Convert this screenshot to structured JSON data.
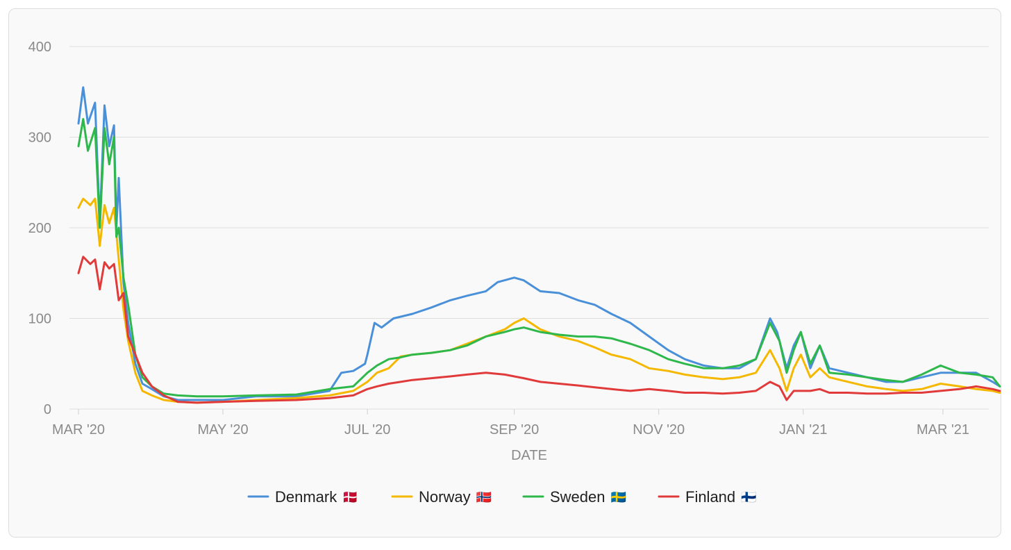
{
  "chart_data": {
    "type": "line",
    "title": "",
    "xlabel": "DATE",
    "ylabel": "",
    "ylim": [
      0,
      400
    ],
    "yticks": [
      0,
      100,
      200,
      300,
      400
    ],
    "grid": true,
    "legend_position": "bottom",
    "x_range": [
      "2020-03-01",
      "2021-03-25"
    ],
    "x_tick_labels": [
      {
        "date": "2020-03-01",
        "label": "MAR '20"
      },
      {
        "date": "2020-05-01",
        "label": "MAY '20"
      },
      {
        "date": "2020-07-01",
        "label": "JUL '20"
      },
      {
        "date": "2020-09-01",
        "label": "SEP '20"
      },
      {
        "date": "2020-11-01",
        "label": "NOV '20"
      },
      {
        "date": "2021-01-01",
        "label": "JAN '21"
      },
      {
        "date": "2021-03-01",
        "label": "MAR '21"
      }
    ],
    "series": [
      {
        "name": "Denmark",
        "flag": "🇩🇰",
        "color": "#4a90d9",
        "points": [
          [
            "2020-03-01",
            315
          ],
          [
            "2020-03-03",
            355
          ],
          [
            "2020-03-05",
            315
          ],
          [
            "2020-03-08",
            338
          ],
          [
            "2020-03-10",
            205
          ],
          [
            "2020-03-12",
            335
          ],
          [
            "2020-03-14",
            290
          ],
          [
            "2020-03-16",
            313
          ],
          [
            "2020-03-17",
            200
          ],
          [
            "2020-03-18",
            255
          ],
          [
            "2020-03-20",
            140
          ],
          [
            "2020-03-22",
            95
          ],
          [
            "2020-03-25",
            50
          ],
          [
            "2020-03-28",
            28
          ],
          [
            "2020-04-01",
            22
          ],
          [
            "2020-04-06",
            14
          ],
          [
            "2020-04-12",
            10
          ],
          [
            "2020-04-20",
            10
          ],
          [
            "2020-05-01",
            10
          ],
          [
            "2020-05-15",
            14
          ],
          [
            "2020-06-01",
            14
          ],
          [
            "2020-06-15",
            20
          ],
          [
            "2020-06-20",
            40
          ],
          [
            "2020-06-25",
            42
          ],
          [
            "2020-06-30",
            50
          ],
          [
            "2020-07-01",
            60
          ],
          [
            "2020-07-04",
            95
          ],
          [
            "2020-07-07",
            90
          ],
          [
            "2020-07-12",
            100
          ],
          [
            "2020-07-20",
            105
          ],
          [
            "2020-07-28",
            112
          ],
          [
            "2020-08-05",
            120
          ],
          [
            "2020-08-12",
            125
          ],
          [
            "2020-08-20",
            130
          ],
          [
            "2020-08-25",
            140
          ],
          [
            "2020-09-01",
            145
          ],
          [
            "2020-09-05",
            142
          ],
          [
            "2020-09-12",
            130
          ],
          [
            "2020-09-20",
            128
          ],
          [
            "2020-09-28",
            120
          ],
          [
            "2020-10-05",
            115
          ],
          [
            "2020-10-12",
            105
          ],
          [
            "2020-10-20",
            95
          ],
          [
            "2020-10-28",
            80
          ],
          [
            "2020-11-05",
            65
          ],
          [
            "2020-11-12",
            55
          ],
          [
            "2020-11-20",
            48
          ],
          [
            "2020-11-28",
            45
          ],
          [
            "2020-12-05",
            45
          ],
          [
            "2020-12-12",
            55
          ],
          [
            "2020-12-18",
            100
          ],
          [
            "2020-12-21",
            85
          ],
          [
            "2020-12-25",
            45
          ],
          [
            "2020-12-28",
            70
          ],
          [
            "2020-12-31",
            85
          ],
          [
            "2021-01-04",
            45
          ],
          [
            "2021-01-08",
            70
          ],
          [
            "2021-01-12",
            45
          ],
          [
            "2021-01-20",
            40
          ],
          [
            "2021-01-28",
            35
          ],
          [
            "2021-02-05",
            30
          ],
          [
            "2021-02-12",
            30
          ],
          [
            "2021-02-20",
            35
          ],
          [
            "2021-02-28",
            40
          ],
          [
            "2021-03-08",
            40
          ],
          [
            "2021-03-15",
            40
          ],
          [
            "2021-03-22",
            30
          ],
          [
            "2021-03-25",
            25
          ]
        ]
      },
      {
        "name": "Norway",
        "flag": "🇳🇴",
        "color": "#f5b800",
        "points": [
          [
            "2020-03-01",
            222
          ],
          [
            "2020-03-03",
            232
          ],
          [
            "2020-03-06",
            225
          ],
          [
            "2020-03-08",
            232
          ],
          [
            "2020-03-10",
            180
          ],
          [
            "2020-03-12",
            225
          ],
          [
            "2020-03-14",
            205
          ],
          [
            "2020-03-16",
            222
          ],
          [
            "2020-03-18",
            165
          ],
          [
            "2020-03-20",
            110
          ],
          [
            "2020-03-22",
            75
          ],
          [
            "2020-03-25",
            40
          ],
          [
            "2020-03-28",
            20
          ],
          [
            "2020-04-01",
            15
          ],
          [
            "2020-04-06",
            10
          ],
          [
            "2020-04-12",
            8
          ],
          [
            "2020-04-20",
            7
          ],
          [
            "2020-05-01",
            8
          ],
          [
            "2020-05-15",
            10
          ],
          [
            "2020-06-01",
            12
          ],
          [
            "2020-06-15",
            15
          ],
          [
            "2020-06-25",
            20
          ],
          [
            "2020-07-01",
            30
          ],
          [
            "2020-07-05",
            40
          ],
          [
            "2020-07-10",
            45
          ],
          [
            "2020-07-15",
            58
          ],
          [
            "2020-07-20",
            60
          ],
          [
            "2020-07-28",
            62
          ],
          [
            "2020-08-05",
            65
          ],
          [
            "2020-08-12",
            72
          ],
          [
            "2020-08-20",
            80
          ],
          [
            "2020-08-28",
            88
          ],
          [
            "2020-09-01",
            95
          ],
          [
            "2020-09-05",
            100
          ],
          [
            "2020-09-12",
            88
          ],
          [
            "2020-09-20",
            80
          ],
          [
            "2020-09-28",
            75
          ],
          [
            "2020-10-05",
            68
          ],
          [
            "2020-10-12",
            60
          ],
          [
            "2020-10-20",
            55
          ],
          [
            "2020-10-28",
            45
          ],
          [
            "2020-11-05",
            42
          ],
          [
            "2020-11-12",
            38
          ],
          [
            "2020-11-20",
            35
          ],
          [
            "2020-11-28",
            33
          ],
          [
            "2020-12-05",
            35
          ],
          [
            "2020-12-12",
            40
          ],
          [
            "2020-12-18",
            65
          ],
          [
            "2020-12-22",
            45
          ],
          [
            "2020-12-25",
            20
          ],
          [
            "2020-12-28",
            45
          ],
          [
            "2020-12-31",
            60
          ],
          [
            "2021-01-04",
            35
          ],
          [
            "2021-01-08",
            45
          ],
          [
            "2021-01-12",
            35
          ],
          [
            "2021-01-20",
            30
          ],
          [
            "2021-01-28",
            25
          ],
          [
            "2021-02-05",
            22
          ],
          [
            "2021-02-12",
            20
          ],
          [
            "2021-02-20",
            22
          ],
          [
            "2021-02-28",
            28
          ],
          [
            "2021-03-08",
            25
          ],
          [
            "2021-03-15",
            22
          ],
          [
            "2021-03-22",
            20
          ],
          [
            "2021-03-25",
            18
          ]
        ]
      },
      {
        "name": "Sweden",
        "flag": "🇸🇪",
        "color": "#2eb84b",
        "points": [
          [
            "2020-03-01",
            290
          ],
          [
            "2020-03-03",
            320
          ],
          [
            "2020-03-05",
            285
          ],
          [
            "2020-03-08",
            310
          ],
          [
            "2020-03-10",
            200
          ],
          [
            "2020-03-12",
            310
          ],
          [
            "2020-03-14",
            270
          ],
          [
            "2020-03-16",
            300
          ],
          [
            "2020-03-17",
            190
          ],
          [
            "2020-03-18",
            200
          ],
          [
            "2020-03-20",
            145
          ],
          [
            "2020-03-22",
            115
          ],
          [
            "2020-03-25",
            60
          ],
          [
            "2020-03-28",
            35
          ],
          [
            "2020-04-01",
            25
          ],
          [
            "2020-04-06",
            17
          ],
          [
            "2020-04-12",
            15
          ],
          [
            "2020-04-20",
            14
          ],
          [
            "2020-05-01",
            14
          ],
          [
            "2020-05-15",
            15
          ],
          [
            "2020-06-01",
            16
          ],
          [
            "2020-06-15",
            22
          ],
          [
            "2020-06-25",
            25
          ],
          [
            "2020-07-01",
            40
          ],
          [
            "2020-07-05",
            48
          ],
          [
            "2020-07-10",
            55
          ],
          [
            "2020-07-15",
            57
          ],
          [
            "2020-07-20",
            60
          ],
          [
            "2020-07-28",
            62
          ],
          [
            "2020-08-05",
            65
          ],
          [
            "2020-08-12",
            70
          ],
          [
            "2020-08-20",
            80
          ],
          [
            "2020-08-28",
            85
          ],
          [
            "2020-09-01",
            88
          ],
          [
            "2020-09-05",
            90
          ],
          [
            "2020-09-12",
            85
          ],
          [
            "2020-09-20",
            82
          ],
          [
            "2020-09-28",
            80
          ],
          [
            "2020-10-05",
            80
          ],
          [
            "2020-10-12",
            78
          ],
          [
            "2020-10-20",
            72
          ],
          [
            "2020-10-28",
            65
          ],
          [
            "2020-11-05",
            55
          ],
          [
            "2020-11-12",
            50
          ],
          [
            "2020-11-20",
            45
          ],
          [
            "2020-11-28",
            45
          ],
          [
            "2020-12-05",
            48
          ],
          [
            "2020-12-12",
            55
          ],
          [
            "2020-12-18",
            95
          ],
          [
            "2020-12-22",
            75
          ],
          [
            "2020-12-25",
            40
          ],
          [
            "2020-12-28",
            65
          ],
          [
            "2020-12-31",
            85
          ],
          [
            "2021-01-04",
            50
          ],
          [
            "2021-01-08",
            70
          ],
          [
            "2021-01-12",
            40
          ],
          [
            "2021-01-20",
            38
          ],
          [
            "2021-01-28",
            35
          ],
          [
            "2021-02-05",
            32
          ],
          [
            "2021-02-12",
            30
          ],
          [
            "2021-02-20",
            38
          ],
          [
            "2021-02-28",
            48
          ],
          [
            "2021-03-08",
            40
          ],
          [
            "2021-03-15",
            38
          ],
          [
            "2021-03-22",
            35
          ],
          [
            "2021-03-25",
            25
          ]
        ]
      },
      {
        "name": "Finland",
        "flag": "🇫🇮",
        "color": "#e03a3a",
        "points": [
          [
            "2020-03-01",
            150
          ],
          [
            "2020-03-03",
            168
          ],
          [
            "2020-03-06",
            160
          ],
          [
            "2020-03-08",
            165
          ],
          [
            "2020-03-10",
            132
          ],
          [
            "2020-03-12",
            162
          ],
          [
            "2020-03-14",
            155
          ],
          [
            "2020-03-16",
            160
          ],
          [
            "2020-03-18",
            120
          ],
          [
            "2020-03-20",
            128
          ],
          [
            "2020-03-22",
            80
          ],
          [
            "2020-03-25",
            60
          ],
          [
            "2020-03-28",
            40
          ],
          [
            "2020-04-01",
            25
          ],
          [
            "2020-04-06",
            15
          ],
          [
            "2020-04-12",
            8
          ],
          [
            "2020-04-20",
            7
          ],
          [
            "2020-05-01",
            8
          ],
          [
            "2020-05-15",
            9
          ],
          [
            "2020-06-01",
            10
          ],
          [
            "2020-06-15",
            12
          ],
          [
            "2020-06-25",
            15
          ],
          [
            "2020-07-01",
            22
          ],
          [
            "2020-07-05",
            25
          ],
          [
            "2020-07-10",
            28
          ],
          [
            "2020-07-15",
            30
          ],
          [
            "2020-07-20",
            32
          ],
          [
            "2020-07-28",
            34
          ],
          [
            "2020-08-05",
            36
          ],
          [
            "2020-08-12",
            38
          ],
          [
            "2020-08-20",
            40
          ],
          [
            "2020-08-28",
            38
          ],
          [
            "2020-09-01",
            36
          ],
          [
            "2020-09-05",
            34
          ],
          [
            "2020-09-12",
            30
          ],
          [
            "2020-09-20",
            28
          ],
          [
            "2020-09-28",
            26
          ],
          [
            "2020-10-05",
            24
          ],
          [
            "2020-10-12",
            22
          ],
          [
            "2020-10-20",
            20
          ],
          [
            "2020-10-28",
            22
          ],
          [
            "2020-11-05",
            20
          ],
          [
            "2020-11-12",
            18
          ],
          [
            "2020-11-20",
            18
          ],
          [
            "2020-11-28",
            17
          ],
          [
            "2020-12-05",
            18
          ],
          [
            "2020-12-12",
            20
          ],
          [
            "2020-12-18",
            30
          ],
          [
            "2020-12-22",
            25
          ],
          [
            "2020-12-25",
            10
          ],
          [
            "2020-12-28",
            20
          ],
          [
            "2020-12-31",
            20
          ],
          [
            "2021-01-04",
            20
          ],
          [
            "2021-01-08",
            22
          ],
          [
            "2021-01-12",
            18
          ],
          [
            "2021-01-20",
            18
          ],
          [
            "2021-01-28",
            17
          ],
          [
            "2021-02-05",
            17
          ],
          [
            "2021-02-12",
            18
          ],
          [
            "2021-02-20",
            18
          ],
          [
            "2021-02-28",
            20
          ],
          [
            "2021-03-08",
            22
          ],
          [
            "2021-03-15",
            25
          ],
          [
            "2021-03-22",
            22
          ],
          [
            "2021-03-25",
            20
          ]
        ]
      }
    ]
  }
}
